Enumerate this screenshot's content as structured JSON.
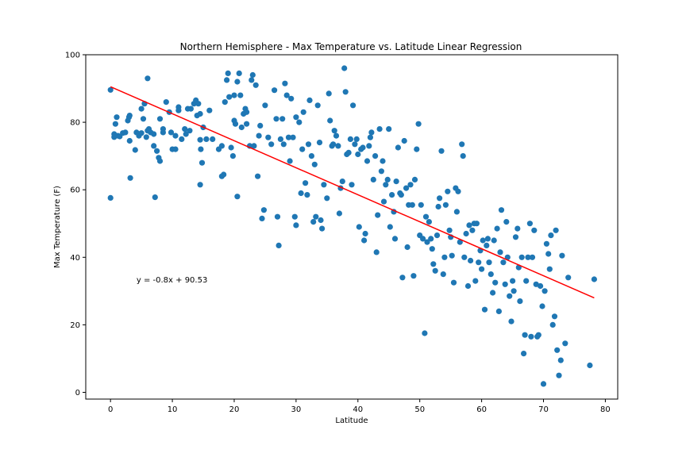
{
  "chart_data": {
    "type": "scatter",
    "title": "Northern Hemisphere - Max Temperature vs. Latitude Linear Regression",
    "xlabel": "Latitude",
    "ylabel": "Max Temperature (F)",
    "xlim": [
      -4,
      82
    ],
    "ylim": [
      -2,
      100
    ],
    "xticks": [
      0,
      10,
      20,
      30,
      40,
      50,
      60,
      70,
      80
    ],
    "yticks": [
      0,
      20,
      40,
      60,
      80,
      100
    ],
    "grid": false,
    "marker_color": "#1f77b4",
    "line_color": "#ff0000",
    "regression": {
      "slope": -0.8,
      "intercept": 90.53,
      "x_range": [
        0,
        78.2
      ]
    },
    "annotation": {
      "text": "y = -0.8x + 90.53",
      "x": 4.2,
      "y": 32.5
    },
    "points": [
      [
        0.0,
        89.6
      ],
      [
        0.0,
        57.6
      ],
      [
        0.6,
        75.6
      ],
      [
        0.6,
        76.5
      ],
      [
        0.8,
        79.5
      ],
      [
        1.0,
        81.5
      ],
      [
        1.2,
        76.0
      ],
      [
        1.5,
        75.8
      ],
      [
        2.0,
        76.8
      ],
      [
        2.4,
        77.0
      ],
      [
        2.8,
        80.5
      ],
      [
        3.0,
        81.5
      ],
      [
        3.1,
        82.0
      ],
      [
        3.1,
        74.5
      ],
      [
        3.2,
        63.5
      ],
      [
        4.0,
        71.8
      ],
      [
        4.2,
        77.0
      ],
      [
        4.6,
        76.0
      ],
      [
        5.0,
        84.0
      ],
      [
        5.0,
        76.8
      ],
      [
        5.3,
        81.0
      ],
      [
        5.5,
        85.5
      ],
      [
        5.8,
        75.6
      ],
      [
        6.0,
        77.5
      ],
      [
        6.0,
        93.0
      ],
      [
        6.2,
        78.0
      ],
      [
        6.5,
        77.0
      ],
      [
        7.0,
        76.5
      ],
      [
        7.0,
        73.0
      ],
      [
        7.2,
        57.8
      ],
      [
        7.5,
        71.5
      ],
      [
        7.8,
        69.5
      ],
      [
        8.0,
        81.0
      ],
      [
        8.0,
        68.5
      ],
      [
        8.5,
        78.0
      ],
      [
        8.5,
        77.0
      ],
      [
        9.0,
        86.0
      ],
      [
        9.5,
        83.0
      ],
      [
        9.8,
        77.0
      ],
      [
        10.0,
        72.0
      ],
      [
        10.5,
        76.0
      ],
      [
        10.5,
        72.0
      ],
      [
        11.0,
        84.5
      ],
      [
        11.0,
        83.5
      ],
      [
        11.5,
        75.0
      ],
      [
        12.0,
        78.0
      ],
      [
        12.2,
        76.5
      ],
      [
        12.5,
        84.0
      ],
      [
        12.8,
        77.5
      ],
      [
        13.0,
        84.0
      ],
      [
        13.5,
        85.5
      ],
      [
        13.8,
        86.5
      ],
      [
        14.0,
        82.0
      ],
      [
        14.2,
        85.5
      ],
      [
        14.5,
        82.5
      ],
      [
        14.5,
        74.8
      ],
      [
        14.6,
        72.0
      ],
      [
        14.8,
        68.0
      ],
      [
        14.5,
        61.5
      ],
      [
        15.0,
        78.5
      ],
      [
        15.5,
        75.0
      ],
      [
        16.0,
        83.5
      ],
      [
        16.5,
        75.0
      ],
      [
        17.5,
        72.0
      ],
      [
        18.0,
        73.0
      ],
      [
        18.0,
        64.0
      ],
      [
        18.3,
        64.5
      ],
      [
        18.5,
        86.0
      ],
      [
        18.8,
        92.5
      ],
      [
        19.0,
        94.5
      ],
      [
        19.2,
        87.5
      ],
      [
        19.5,
        72.5
      ],
      [
        19.8,
        70.0
      ],
      [
        20.0,
        88.0
      ],
      [
        20.0,
        80.5
      ],
      [
        20.2,
        79.5
      ],
      [
        20.5,
        58.0
      ],
      [
        20.5,
        92.0
      ],
      [
        20.8,
        94.5
      ],
      [
        21.0,
        88.0
      ],
      [
        21.2,
        78.5
      ],
      [
        21.5,
        82.5
      ],
      [
        21.8,
        84.0
      ],
      [
        22.0,
        79.5
      ],
      [
        22.0,
        83.0
      ],
      [
        22.5,
        73.0
      ],
      [
        22.8,
        92.5
      ],
      [
        23.0,
        94.0
      ],
      [
        23.2,
        73.0
      ],
      [
        23.5,
        91.0
      ],
      [
        23.8,
        64.0
      ],
      [
        24.0,
        76.0
      ],
      [
        24.2,
        79.0
      ],
      [
        24.5,
        51.5
      ],
      [
        24.8,
        54.0
      ],
      [
        25.0,
        85.0
      ],
      [
        25.5,
        75.5
      ],
      [
        26.0,
        73.5
      ],
      [
        26.5,
        89.5
      ],
      [
        26.8,
        81.0
      ],
      [
        27.0,
        52.0
      ],
      [
        27.2,
        43.5
      ],
      [
        27.5,
        75.0
      ],
      [
        27.8,
        81.0
      ],
      [
        28.0,
        73.5
      ],
      [
        28.2,
        91.5
      ],
      [
        28.5,
        88.0
      ],
      [
        28.8,
        75.5
      ],
      [
        29.0,
        68.5
      ],
      [
        29.2,
        87.0
      ],
      [
        29.5,
        75.5
      ],
      [
        29.8,
        52.0
      ],
      [
        30.0,
        49.5
      ],
      [
        30.0,
        81.5
      ],
      [
        30.5,
        80.0
      ],
      [
        30.8,
        59.0
      ],
      [
        31.0,
        72.0
      ],
      [
        31.2,
        83.0
      ],
      [
        31.5,
        62.0
      ],
      [
        31.8,
        58.5
      ],
      [
        32.0,
        73.5
      ],
      [
        32.2,
        86.5
      ],
      [
        32.5,
        70.0
      ],
      [
        32.8,
        50.5
      ],
      [
        33.0,
        67.5
      ],
      [
        33.2,
        52.0
      ],
      [
        33.5,
        85.0
      ],
      [
        33.8,
        74.0
      ],
      [
        34.0,
        51.0
      ],
      [
        34.2,
        48.5
      ],
      [
        34.5,
        61.5
      ],
      [
        35.0,
        57.5
      ],
      [
        35.3,
        88.5
      ],
      [
        35.5,
        80.5
      ],
      [
        35.8,
        73.0
      ],
      [
        36.0,
        73.5
      ],
      [
        36.2,
        77.5
      ],
      [
        36.5,
        76.0
      ],
      [
        36.8,
        73.0
      ],
      [
        37.0,
        53.0
      ],
      [
        37.2,
        60.5
      ],
      [
        37.5,
        62.5
      ],
      [
        37.8,
        96.0
      ],
      [
        38.0,
        89.0
      ],
      [
        38.2,
        70.5
      ],
      [
        38.5,
        71.0
      ],
      [
        38.8,
        75.0
      ],
      [
        39.0,
        61.5
      ],
      [
        39.2,
        85.0
      ],
      [
        39.5,
        73.5
      ],
      [
        39.8,
        75.0
      ],
      [
        40.0,
        70.5
      ],
      [
        40.2,
        49.0
      ],
      [
        40.5,
        72.0
      ],
      [
        40.8,
        72.5
      ],
      [
        41.0,
        45.0
      ],
      [
        41.2,
        47.0
      ],
      [
        41.5,
        68.5
      ],
      [
        41.8,
        73.0
      ],
      [
        42.0,
        75.5
      ],
      [
        42.2,
        77.0
      ],
      [
        42.5,
        63.0
      ],
      [
        42.8,
        70.0
      ],
      [
        43.0,
        41.5
      ],
      [
        43.2,
        52.5
      ],
      [
        43.5,
        78.0
      ],
      [
        43.8,
        65.5
      ],
      [
        44.0,
        68.5
      ],
      [
        44.2,
        56.5
      ],
      [
        44.5,
        61.5
      ],
      [
        44.8,
        63.0
      ],
      [
        45.0,
        78.0
      ],
      [
        45.2,
        49.0
      ],
      [
        45.5,
        58.5
      ],
      [
        45.8,
        53.5
      ],
      [
        46.0,
        45.5
      ],
      [
        46.2,
        62.5
      ],
      [
        46.5,
        72.5
      ],
      [
        46.8,
        59.0
      ],
      [
        47.0,
        58.5
      ],
      [
        47.2,
        34.0
      ],
      [
        47.5,
        74.5
      ],
      [
        47.8,
        60.5
      ],
      [
        48.0,
        43.0
      ],
      [
        48.2,
        55.5
      ],
      [
        48.5,
        61.5
      ],
      [
        48.8,
        55.5
      ],
      [
        49.0,
        34.5
      ],
      [
        49.2,
        63.0
      ],
      [
        49.5,
        72.0
      ],
      [
        49.8,
        79.5
      ],
      [
        50.0,
        46.5
      ],
      [
        50.2,
        55.5
      ],
      [
        50.5,
        45.5
      ],
      [
        50.8,
        17.5
      ],
      [
        51.0,
        52.0
      ],
      [
        51.2,
        44.5
      ],
      [
        51.5,
        50.5
      ],
      [
        51.8,
        45.5
      ],
      [
        52.0,
        42.5
      ],
      [
        52.2,
        38.0
      ],
      [
        52.5,
        36.0
      ],
      [
        52.8,
        46.5
      ],
      [
        53.0,
        55.0
      ],
      [
        53.2,
        57.5
      ],
      [
        53.5,
        71.5
      ],
      [
        53.8,
        35.0
      ],
      [
        54.0,
        40.0
      ],
      [
        54.2,
        55.5
      ],
      [
        54.5,
        59.5
      ],
      [
        54.8,
        48.0
      ],
      [
        55.0,
        46.0
      ],
      [
        55.2,
        40.5
      ],
      [
        55.5,
        32.5
      ],
      [
        55.8,
        60.5
      ],
      [
        56.0,
        53.5
      ],
      [
        56.2,
        59.5
      ],
      [
        56.5,
        44.5
      ],
      [
        56.8,
        73.5
      ],
      [
        57.0,
        70.0
      ],
      [
        57.2,
        40.0
      ],
      [
        57.5,
        47.0
      ],
      [
        57.8,
        31.5
      ],
      [
        58.0,
        49.5
      ],
      [
        58.2,
        39.0
      ],
      [
        58.5,
        48.0
      ],
      [
        58.8,
        50.0
      ],
      [
        59.0,
        33.0
      ],
      [
        59.2,
        50.0
      ],
      [
        59.5,
        38.5
      ],
      [
        59.8,
        42.0
      ],
      [
        60.0,
        36.5
      ],
      [
        60.2,
        45.0
      ],
      [
        60.5,
        24.5
      ],
      [
        60.8,
        43.5
      ],
      [
        61.0,
        45.5
      ],
      [
        61.2,
        38.5
      ],
      [
        61.5,
        35.0
      ],
      [
        61.8,
        29.5
      ],
      [
        62.0,
        45.0
      ],
      [
        62.2,
        32.5
      ],
      [
        62.5,
        48.5
      ],
      [
        62.8,
        24.0
      ],
      [
        63.0,
        41.5
      ],
      [
        63.2,
        54.0
      ],
      [
        63.5,
        38.5
      ],
      [
        63.8,
        32.0
      ],
      [
        64.0,
        50.5
      ],
      [
        64.2,
        40.0
      ],
      [
        64.5,
        28.5
      ],
      [
        64.8,
        21.0
      ],
      [
        65.0,
        33.0
      ],
      [
        65.2,
        30.0
      ],
      [
        65.5,
        46.0
      ],
      [
        65.8,
        48.5
      ],
      [
        66.0,
        37.0
      ],
      [
        66.2,
        27.0
      ],
      [
        66.5,
        40.0
      ],
      [
        66.8,
        11.5
      ],
      [
        67.0,
        17.0
      ],
      [
        67.2,
        33.0
      ],
      [
        67.5,
        40.0
      ],
      [
        67.8,
        50.0
      ],
      [
        68.0,
        16.5
      ],
      [
        68.2,
        40.0
      ],
      [
        68.5,
        48.0
      ],
      [
        68.8,
        32.0
      ],
      [
        69.0,
        16.5
      ],
      [
        69.2,
        17.0
      ],
      [
        69.5,
        31.5
      ],
      [
        69.8,
        25.5
      ],
      [
        70.0,
        2.5
      ],
      [
        70.2,
        30.0
      ],
      [
        70.5,
        44.0
      ],
      [
        70.8,
        41.0
      ],
      [
        71.0,
        36.5
      ],
      [
        71.2,
        46.5
      ],
      [
        71.5,
        20.0
      ],
      [
        71.8,
        22.5
      ],
      [
        72.0,
        48.0
      ],
      [
        72.2,
        12.5
      ],
      [
        72.5,
        5.0
      ],
      [
        72.8,
        9.5
      ],
      [
        73.0,
        40.5
      ],
      [
        73.5,
        14.5
      ],
      [
        74.0,
        34.0
      ],
      [
        77.5,
        8.0
      ],
      [
        78.2,
        33.5
      ]
    ]
  }
}
